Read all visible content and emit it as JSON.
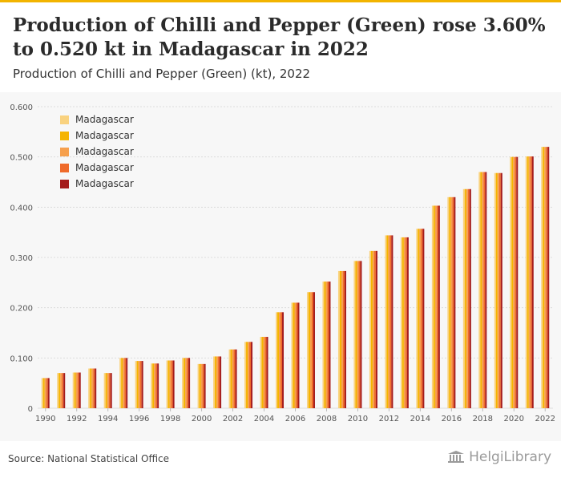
{
  "header": {
    "title": "Production of Chilli and Pepper (Green) rose 3.60% to 0.520 kt in Madagascar in 2022",
    "subtitle": "Production of Chilli and Pepper (Green) (kt), 2022"
  },
  "footer": {
    "source": "Source: National Statistical Office",
    "brand": "HelgiLibrary"
  },
  "colors": {
    "accent": "#f2b400",
    "series": [
      "#f9d27f",
      "#f5b400",
      "#f6a04d",
      "#ef6a2a",
      "#a51c1c"
    ]
  },
  "chart_data": {
    "type": "bar",
    "categories": [
      "1990",
      "1991",
      "1992",
      "1993",
      "1994",
      "1995",
      "1996",
      "1997",
      "1998",
      "1999",
      "2000",
      "2001",
      "2002",
      "2003",
      "2004",
      "2005",
      "2006",
      "2007",
      "2008",
      "2009",
      "2010",
      "2011",
      "2012",
      "2013",
      "2014",
      "2015",
      "2016",
      "2017",
      "2018",
      "2019",
      "2020",
      "2021",
      "2022"
    ],
    "x_tick_labels": [
      "1990",
      "1992",
      "1994",
      "1996",
      "1998",
      "2000",
      "2002",
      "2004",
      "2006",
      "2008",
      "2010",
      "2012",
      "2014",
      "2016",
      "2018",
      "2020",
      "2022"
    ],
    "y_tick_labels": [
      "0",
      "0.100",
      "0.200",
      "0.300",
      "0.400",
      "0.500",
      "0.600"
    ],
    "ylim": [
      0,
      0.6
    ],
    "grid": true,
    "legend_position": "top-left",
    "series": [
      {
        "name": "Madagascar",
        "values": [
          0.06,
          0.07,
          0.071,
          0.079,
          0.07,
          0.1,
          0.094,
          0.089,
          0.095,
          0.1,
          0.088,
          0.103,
          0.117,
          0.132,
          0.142,
          0.191,
          0.21,
          0.231,
          0.252,
          0.273,
          0.293,
          0.313,
          0.344,
          0.34,
          0.357,
          0.403,
          0.42,
          0.436,
          0.47,
          0.468,
          0.5,
          0.501,
          0.52
        ]
      },
      {
        "name": "Madagascar",
        "values": [
          0.06,
          0.07,
          0.071,
          0.079,
          0.07,
          0.1,
          0.094,
          0.089,
          0.095,
          0.1,
          0.088,
          0.103,
          0.117,
          0.132,
          0.142,
          0.191,
          0.21,
          0.231,
          0.252,
          0.273,
          0.293,
          0.313,
          0.344,
          0.34,
          0.357,
          0.403,
          0.42,
          0.436,
          0.47,
          0.468,
          0.5,
          0.501,
          0.52
        ]
      },
      {
        "name": "Madagascar",
        "values": [
          0.06,
          0.07,
          0.071,
          0.079,
          0.07,
          0.1,
          0.094,
          0.089,
          0.095,
          0.1,
          0.088,
          0.103,
          0.117,
          0.132,
          0.142,
          0.191,
          0.21,
          0.231,
          0.252,
          0.273,
          0.293,
          0.313,
          0.344,
          0.34,
          0.357,
          0.403,
          0.42,
          0.436,
          0.47,
          0.468,
          0.5,
          0.501,
          0.52
        ]
      },
      {
        "name": "Madagascar",
        "values": [
          0.06,
          0.07,
          0.071,
          0.079,
          0.07,
          0.1,
          0.094,
          0.089,
          0.095,
          0.1,
          0.088,
          0.103,
          0.117,
          0.132,
          0.142,
          0.191,
          0.21,
          0.231,
          0.252,
          0.273,
          0.293,
          0.313,
          0.344,
          0.34,
          0.357,
          0.403,
          0.42,
          0.436,
          0.47,
          0.468,
          0.5,
          0.501,
          0.52
        ]
      },
      {
        "name": "Madagascar",
        "values": [
          0.06,
          0.07,
          0.071,
          0.079,
          0.07,
          0.1,
          0.094,
          0.089,
          0.095,
          0.1,
          0.088,
          0.103,
          0.117,
          0.132,
          0.142,
          0.191,
          0.21,
          0.231,
          0.252,
          0.273,
          0.293,
          0.313,
          0.344,
          0.34,
          0.357,
          0.403,
          0.42,
          0.436,
          0.47,
          0.468,
          0.5,
          0.501,
          0.52
        ]
      }
    ]
  }
}
